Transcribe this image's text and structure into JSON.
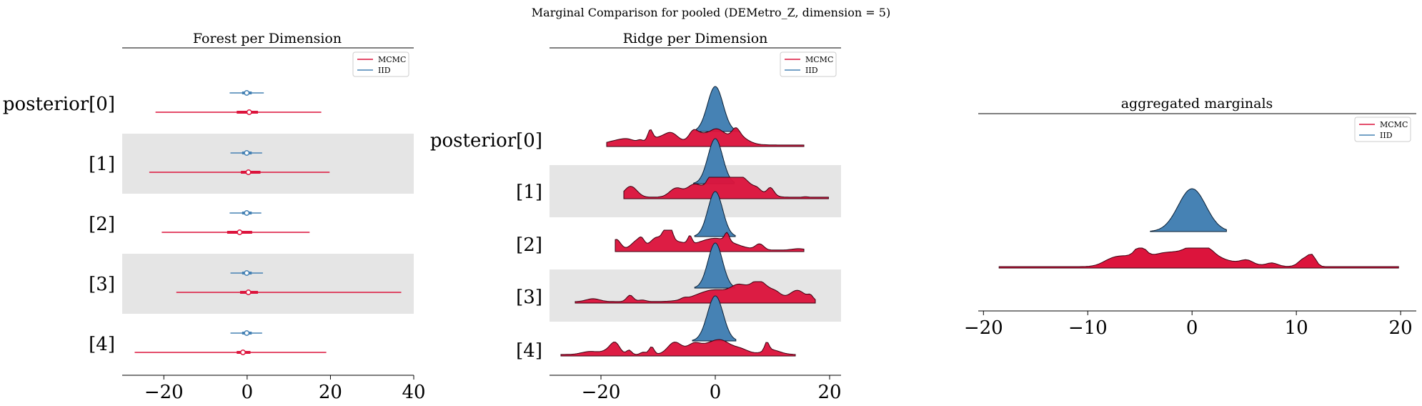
{
  "figure": {
    "suptitle": "Marginal Comparison for pooled (DEMetro_Z, dimension = 5)"
  },
  "colors": {
    "mcmc": "#dc143c",
    "iid": "#4682b4",
    "band": "#e5e5e5"
  },
  "chart_data": [
    {
      "type": "forest",
      "title": "Forest per Dimension",
      "rows": [
        "posterior[0]",
        "[1]",
        "[2]",
        "[3]",
        "[4]"
      ],
      "shaded_rows": [
        1,
        3
      ],
      "xlim": [
        -30,
        40
      ],
      "xticks": [
        -20,
        0,
        20,
        40
      ],
      "legend": {
        "placement": "top-right",
        "entries": [
          "MCMC",
          "IID"
        ]
      },
      "series": [
        {
          "name": "MCMC",
          "median": [
            0.5,
            0.3,
            -1.8,
            0.3,
            -1.0
          ],
          "q_inner": [
            [
              -2.5,
              2.6
            ],
            [
              -1.5,
              3.2
            ],
            [
              -4.8,
              1.2
            ],
            [
              -1.7,
              2.6
            ],
            [
              -2.5,
              0.8
            ]
          ],
          "q_outer": [
            [
              -22.0,
              17.8
            ],
            [
              -23.5,
              19.8
            ],
            [
              -20.5,
              15.0
            ],
            [
              -17.0,
              37.0
            ],
            [
              -27.0,
              19.0
            ]
          ]
        },
        {
          "name": "IID",
          "median": [
            -0.1,
            -0.1,
            -0.1,
            -0.1,
            -0.1
          ],
          "q_inner": [
            [
              -1.2,
              1.1
            ],
            [
              -1.2,
              1.1
            ],
            [
              -1.2,
              1.1
            ],
            [
              -1.2,
              1.1
            ],
            [
              -1.2,
              1.1
            ]
          ],
          "q_outer": [
            [
              -4.2,
              4.0
            ],
            [
              -4.0,
              3.6
            ],
            [
              -4.2,
              3.4
            ],
            [
              -4.0,
              3.8
            ],
            [
              -4.0,
              3.6
            ]
          ]
        }
      ]
    },
    {
      "type": "ridge",
      "title": "Ridge per Dimension",
      "rows": [
        "posterior[0]",
        "[1]",
        "[2]",
        "[3]",
        "[4]"
      ],
      "shaded_rows": [
        1,
        3
      ],
      "xlim": [
        -29,
        22
      ],
      "xticks": [
        -20,
        0,
        20
      ],
      "legend": {
        "placement": "top-right",
        "entries": [
          "MCMC",
          "IID"
        ]
      },
      "series": [
        {
          "name": "MCMC",
          "support": [
            [
              -19,
              15.5
            ],
            [
              -16,
              19.8
            ],
            [
              -17.5,
              15.5
            ],
            [
              -24.5,
              17.5
            ],
            [
              -27,
              14
            ]
          ]
        },
        {
          "name": "IID",
          "support": [
            [
              -3.3,
              4.2
            ],
            [
              -3.8,
              3.3
            ],
            [
              -3.6,
              3.5
            ],
            [
              -3.6,
              3.4
            ],
            [
              -4.0,
              3.6
            ]
          ]
        }
      ]
    },
    {
      "type": "ridge",
      "title": "aggregated marginals",
      "rows": [
        ""
      ],
      "xlim": [
        -20.5,
        21.5
      ],
      "xticks": [
        -20,
        -10,
        0,
        10,
        20
      ],
      "legend": {
        "placement": "top-right",
        "entries": [
          "MCMC",
          "IID"
        ]
      },
      "series": [
        {
          "name": "MCMC",
          "support": [
            [
              -18.5,
              19.8
            ]
          ]
        },
        {
          "name": "IID",
          "support": [
            [
              -4.0,
              3.3
            ]
          ]
        }
      ]
    }
  ]
}
